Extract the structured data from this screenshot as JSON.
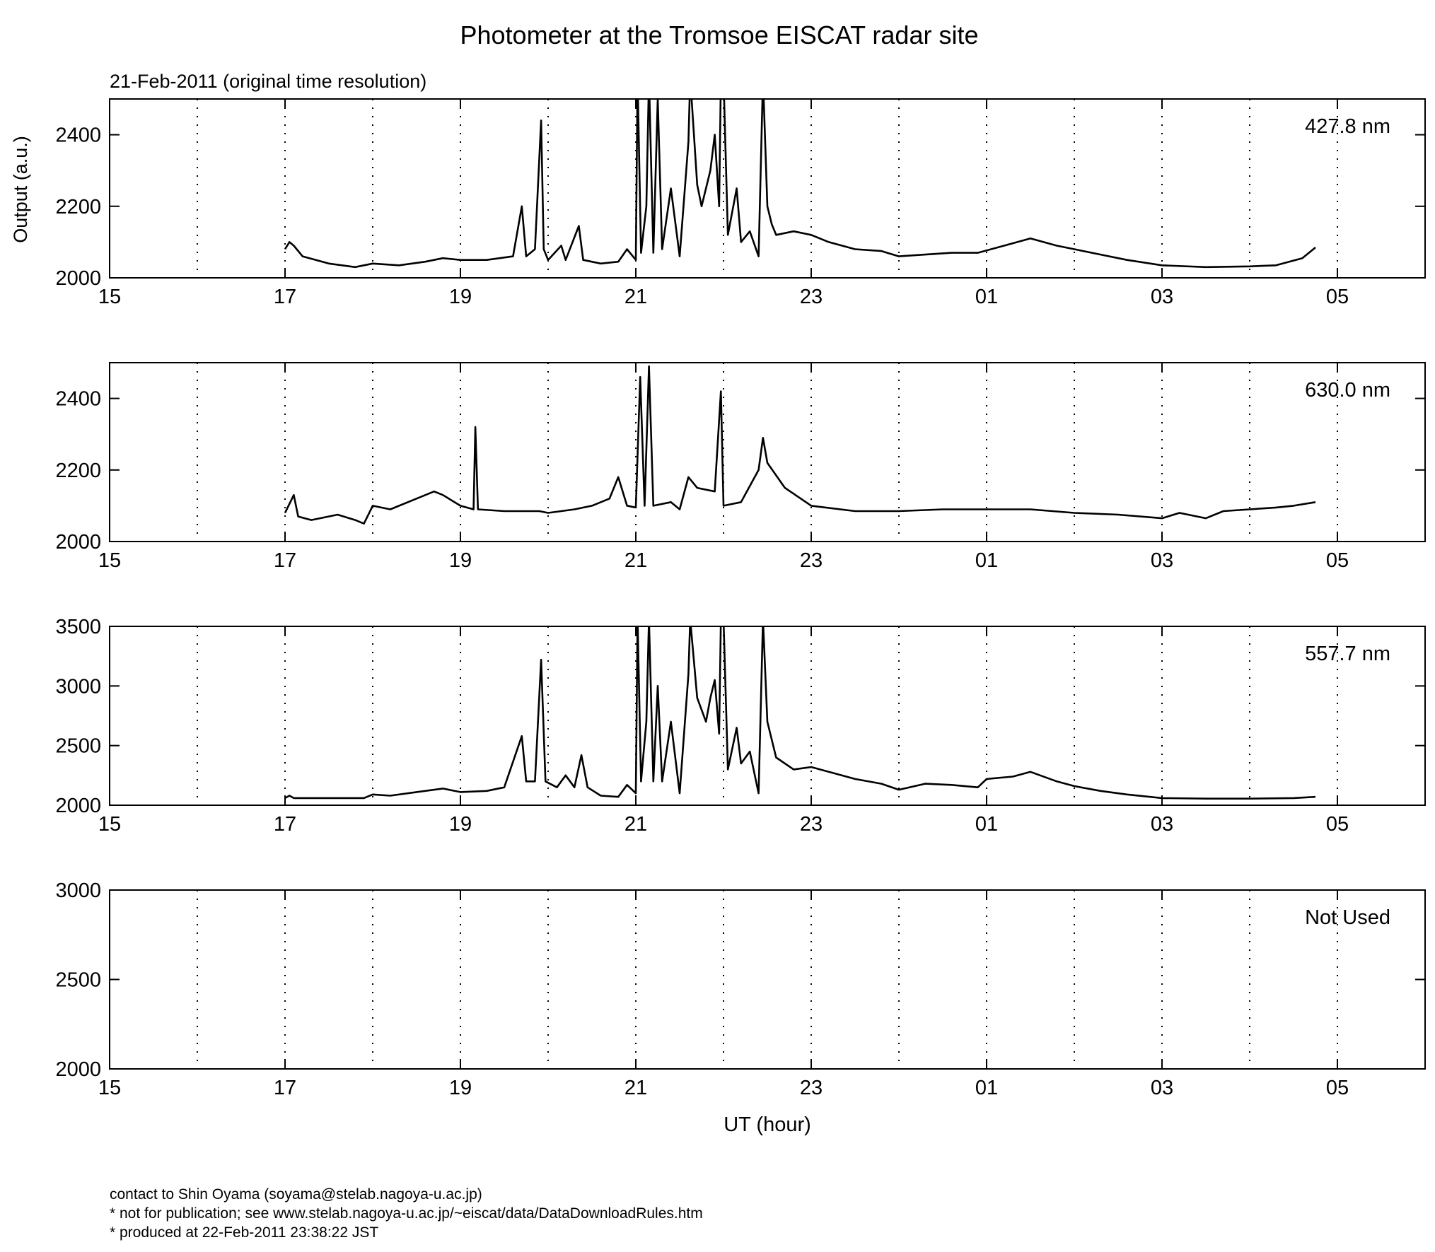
{
  "chart_data": {
    "title": "Photometer at the Tromsoe EISCAT radar site",
    "subtitle": "21-Feb-2011 (original time resolution)",
    "xlabel": "UT (hour)",
    "ylabel": "Output (a.u.)",
    "x_tick_labels": [
      "15",
      "17",
      "19",
      "21",
      "23",
      "01",
      "03",
      "05"
    ],
    "x_range_hours": [
      15,
      30
    ],
    "grid": "dotted vertical at each hour",
    "panels": [
      {
        "type": "line",
        "label": "427.8 nm",
        "ylim": [
          2000,
          2500
        ],
        "yticks": [
          2000,
          2200,
          2400
        ],
        "points": [
          [
            17.0,
            2080
          ],
          [
            17.05,
            2100
          ],
          [
            17.1,
            2090
          ],
          [
            17.2,
            2060
          ],
          [
            17.5,
            2040
          ],
          [
            17.8,
            2030
          ],
          [
            18.0,
            2040
          ],
          [
            18.3,
            2035
          ],
          [
            18.6,
            2045
          ],
          [
            18.8,
            2055
          ],
          [
            19.0,
            2050
          ],
          [
            19.3,
            2050
          ],
          [
            19.6,
            2060
          ],
          [
            19.7,
            2200
          ],
          [
            19.75,
            2060
          ],
          [
            19.85,
            2080
          ],
          [
            19.92,
            2440
          ],
          [
            19.95,
            2080
          ],
          [
            20.0,
            2050
          ],
          [
            20.15,
            2090
          ],
          [
            20.2,
            2050
          ],
          [
            20.35,
            2145
          ],
          [
            20.4,
            2050
          ],
          [
            20.6,
            2040
          ],
          [
            20.8,
            2045
          ],
          [
            20.9,
            2080
          ],
          [
            21.0,
            2050
          ],
          [
            21.02,
            2560
          ],
          [
            21.06,
            2070
          ],
          [
            21.12,
            2200
          ],
          [
            21.15,
            2560
          ],
          [
            21.2,
            2070
          ],
          [
            21.25,
            2500
          ],
          [
            21.3,
            2080
          ],
          [
            21.4,
            2250
          ],
          [
            21.5,
            2060
          ],
          [
            21.6,
            2380
          ],
          [
            21.62,
            2560
          ],
          [
            21.7,
            2260
          ],
          [
            21.75,
            2200
          ],
          [
            21.85,
            2300
          ],
          [
            21.9,
            2400
          ],
          [
            21.95,
            2200
          ],
          [
            21.97,
            2560
          ],
          [
            22.0,
            2560
          ],
          [
            22.05,
            2120
          ],
          [
            22.15,
            2250
          ],
          [
            22.2,
            2100
          ],
          [
            22.3,
            2130
          ],
          [
            22.4,
            2060
          ],
          [
            22.45,
            2560
          ],
          [
            22.5,
            2200
          ],
          [
            22.55,
            2150
          ],
          [
            22.6,
            2120
          ],
          [
            22.8,
            2130
          ],
          [
            23.0,
            2120
          ],
          [
            23.2,
            2100
          ],
          [
            23.5,
            2080
          ],
          [
            23.8,
            2075
          ],
          [
            24.0,
            2060
          ],
          [
            24.3,
            2065
          ],
          [
            24.6,
            2070
          ],
          [
            24.9,
            2070
          ],
          [
            25.2,
            2090
          ],
          [
            25.5,
            2110
          ],
          [
            25.8,
            2090
          ],
          [
            26.0,
            2080
          ],
          [
            26.3,
            2065
          ],
          [
            26.6,
            2050
          ],
          [
            27.0,
            2035
          ],
          [
            27.5,
            2030
          ],
          [
            28.0,
            2032
          ],
          [
            28.3,
            2035
          ],
          [
            28.6,
            2055
          ],
          [
            28.75,
            2085
          ]
        ]
      },
      {
        "type": "line",
        "label": "630.0 nm",
        "ylim": [
          2000,
          2500
        ],
        "yticks": [
          2000,
          2200,
          2400
        ],
        "points": [
          [
            17.0,
            2080
          ],
          [
            17.1,
            2130
          ],
          [
            17.15,
            2070
          ],
          [
            17.3,
            2060
          ],
          [
            17.6,
            2075
          ],
          [
            17.8,
            2060
          ],
          [
            17.9,
            2050
          ],
          [
            18.0,
            2100
          ],
          [
            18.2,
            2090
          ],
          [
            18.5,
            2120
          ],
          [
            18.7,
            2140
          ],
          [
            18.8,
            2130
          ],
          [
            19.0,
            2100
          ],
          [
            19.15,
            2090
          ],
          [
            19.17,
            2320
          ],
          [
            19.2,
            2090
          ],
          [
            19.5,
            2085
          ],
          [
            19.9,
            2085
          ],
          [
            20.0,
            2080
          ],
          [
            20.3,
            2090
          ],
          [
            20.5,
            2100
          ],
          [
            20.7,
            2120
          ],
          [
            20.8,
            2180
          ],
          [
            20.9,
            2100
          ],
          [
            21.0,
            2095
          ],
          [
            21.05,
            2460
          ],
          [
            21.1,
            2100
          ],
          [
            21.15,
            2490
          ],
          [
            21.2,
            2100
          ],
          [
            21.4,
            2110
          ],
          [
            21.5,
            2090
          ],
          [
            21.6,
            2180
          ],
          [
            21.7,
            2150
          ],
          [
            21.9,
            2140
          ],
          [
            21.97,
            2420
          ],
          [
            22.0,
            2100
          ],
          [
            22.2,
            2110
          ],
          [
            22.4,
            2200
          ],
          [
            22.45,
            2290
          ],
          [
            22.5,
            2220
          ],
          [
            22.7,
            2150
          ],
          [
            23.0,
            2100
          ],
          [
            23.5,
            2085
          ],
          [
            24.0,
            2085
          ],
          [
            24.5,
            2090
          ],
          [
            25.0,
            2090
          ],
          [
            25.5,
            2090
          ],
          [
            26.0,
            2080
          ],
          [
            26.5,
            2075
          ],
          [
            27.0,
            2065
          ],
          [
            27.2,
            2080
          ],
          [
            27.5,
            2065
          ],
          [
            27.7,
            2085
          ],
          [
            28.0,
            2090
          ],
          [
            28.3,
            2095
          ],
          [
            28.5,
            2100
          ],
          [
            28.75,
            2110
          ]
        ]
      },
      {
        "type": "line",
        "label": "557.7 nm",
        "ylim": [
          2000,
          3500
        ],
        "yticks": [
          2000,
          2500,
          3000,
          3500
        ],
        "points": [
          [
            17.0,
            2060
          ],
          [
            17.05,
            2080
          ],
          [
            17.1,
            2060
          ],
          [
            17.5,
            2060
          ],
          [
            17.9,
            2060
          ],
          [
            18.0,
            2090
          ],
          [
            18.2,
            2080
          ],
          [
            18.5,
            2110
          ],
          [
            18.8,
            2140
          ],
          [
            19.0,
            2110
          ],
          [
            19.3,
            2120
          ],
          [
            19.5,
            2150
          ],
          [
            19.7,
            2580
          ],
          [
            19.75,
            2200
          ],
          [
            19.85,
            2200
          ],
          [
            19.92,
            3220
          ],
          [
            19.97,
            2200
          ],
          [
            20.1,
            2150
          ],
          [
            20.2,
            2250
          ],
          [
            20.3,
            2150
          ],
          [
            20.38,
            2420
          ],
          [
            20.45,
            2150
          ],
          [
            20.6,
            2080
          ],
          [
            20.8,
            2070
          ],
          [
            20.9,
            2170
          ],
          [
            21.0,
            2100
          ],
          [
            21.02,
            3560
          ],
          [
            21.06,
            2200
          ],
          [
            21.12,
            2700
          ],
          [
            21.15,
            3560
          ],
          [
            21.2,
            2200
          ],
          [
            21.25,
            3000
          ],
          [
            21.3,
            2200
          ],
          [
            21.4,
            2700
          ],
          [
            21.5,
            2100
          ],
          [
            21.6,
            3100
          ],
          [
            21.62,
            3560
          ],
          [
            21.7,
            2900
          ],
          [
            21.8,
            2700
          ],
          [
            21.85,
            2900
          ],
          [
            21.9,
            3050
          ],
          [
            21.95,
            2600
          ],
          [
            21.97,
            3560
          ],
          [
            22.0,
            3560
          ],
          [
            22.05,
            2300
          ],
          [
            22.15,
            2650
          ],
          [
            22.2,
            2350
          ],
          [
            22.3,
            2450
          ],
          [
            22.4,
            2100
          ],
          [
            22.45,
            3560
          ],
          [
            22.5,
            2700
          ],
          [
            22.6,
            2400
          ],
          [
            22.8,
            2300
          ],
          [
            23.0,
            2320
          ],
          [
            23.2,
            2280
          ],
          [
            23.5,
            2220
          ],
          [
            23.8,
            2180
          ],
          [
            24.0,
            2130
          ],
          [
            24.3,
            2180
          ],
          [
            24.6,
            2170
          ],
          [
            24.9,
            2150
          ],
          [
            25.0,
            2220
          ],
          [
            25.3,
            2240
          ],
          [
            25.5,
            2280
          ],
          [
            25.8,
            2200
          ],
          [
            26.0,
            2160
          ],
          [
            26.3,
            2120
          ],
          [
            26.6,
            2090
          ],
          [
            27.0,
            2060
          ],
          [
            27.5,
            2055
          ],
          [
            28.0,
            2055
          ],
          [
            28.5,
            2060
          ],
          [
            28.75,
            2070
          ]
        ]
      },
      {
        "type": "line",
        "label": "Not Used",
        "ylim": [
          2000,
          3000
        ],
        "yticks": [
          2000,
          2500,
          3000
        ],
        "points": []
      }
    ]
  },
  "footer": {
    "line1": "contact to Shin Oyama (soyama@stelab.nagoya-u.ac.jp)",
    "line2": "* not for publication; see www.stelab.nagoya-u.ac.jp/~eiscat/data/DataDownloadRules.htm",
    "line3": "* produced at 22-Feb-2011 23:38:22 JST"
  }
}
